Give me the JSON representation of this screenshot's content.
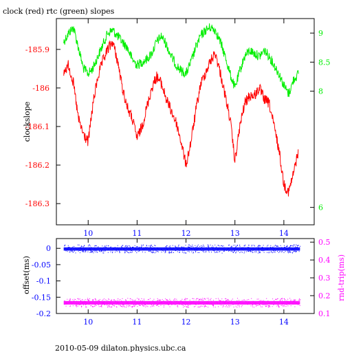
{
  "figure": {
    "title": "clock (red) rtc (green) slopes",
    "footer": "2010-05-09  dilaton.physics.ubc.ca"
  },
  "colors": {
    "clock": "#ff0000",
    "rtc": "#00ee00",
    "offset": "#0000ff",
    "rndtrip": "#ff00ff",
    "axes": "#000000"
  },
  "chart_data": [
    {
      "type": "line",
      "title": "clock (red) rtc (green) slopes",
      "xlabel": "",
      "ylabel": "clockslope",
      "xlim": [
        9.35,
        14.62
      ],
      "ylim": [
        -186.355,
        -185.82
      ],
      "y2lim": [
        5.7,
        9.25
      ],
      "x_ticks": [
        10,
        11,
        12,
        13,
        14
      ],
      "y_ticks": [
        -185.9,
        -186,
        -186.1,
        -186.2,
        -186.3
      ],
      "y_tick_labels": [
        "-185.9",
        "-186",
        "-186.1",
        "-186.2",
        "-186.3"
      ],
      "y2_ticks": [
        9,
        8.5,
        8,
        6
      ],
      "y2_tick_labels": [
        "9",
        "8.5",
        "8",
        "6"
      ],
      "series": [
        {
          "name": "clock",
          "axis": "left",
          "x": [
            9.5,
            9.6,
            9.7,
            9.8,
            9.9,
            10.0,
            10.1,
            10.2,
            10.3,
            10.4,
            10.5,
            10.6,
            10.7,
            10.8,
            10.9,
            11.0,
            11.1,
            11.2,
            11.3,
            11.4,
            11.5,
            11.6,
            11.7,
            11.8,
            11.9,
            12.0,
            12.1,
            12.2,
            12.3,
            12.4,
            12.5,
            12.6,
            12.7,
            12.8,
            12.9,
            13.0,
            13.1,
            13.2,
            13.3,
            13.4,
            13.5,
            13.6,
            13.7,
            13.8,
            13.9,
            14.0,
            14.1,
            14.2,
            14.3
          ],
          "values": [
            -185.96,
            -185.94,
            -185.99,
            -186.08,
            -186.12,
            -186.14,
            -186.04,
            -185.97,
            -185.93,
            -185.9,
            -185.88,
            -185.93,
            -186.0,
            -186.05,
            -186.08,
            -186.13,
            -186.1,
            -186.05,
            -186.0,
            -185.97,
            -185.99,
            -186.03,
            -186.06,
            -186.09,
            -186.14,
            -186.2,
            -186.14,
            -186.06,
            -185.99,
            -185.96,
            -185.93,
            -185.91,
            -185.96,
            -186.02,
            -186.08,
            -186.19,
            -186.1,
            -186.04,
            -186.02,
            -186.02,
            -186.0,
            -186.03,
            -186.04,
            -186.1,
            -186.16,
            -186.25,
            -186.27,
            -186.22,
            -186.16
          ]
        },
        {
          "name": "rtc",
          "axis": "right",
          "x": [
            9.5,
            9.6,
            9.7,
            9.8,
            9.9,
            10.0,
            10.1,
            10.2,
            10.3,
            10.4,
            10.5,
            10.6,
            10.7,
            10.8,
            10.9,
            11.0,
            11.1,
            11.2,
            11.3,
            11.4,
            11.5,
            11.6,
            11.7,
            11.8,
            11.9,
            12.0,
            12.1,
            12.2,
            12.3,
            12.4,
            12.5,
            12.6,
            12.7,
            12.8,
            12.9,
            13.0,
            13.1,
            13.2,
            13.3,
            13.4,
            13.5,
            13.6,
            13.7,
            13.8,
            13.9,
            14.0,
            14.1,
            14.2,
            14.3
          ],
          "values": [
            8.85,
            9.0,
            9.1,
            8.75,
            8.4,
            8.3,
            8.4,
            8.6,
            8.8,
            9.0,
            9.05,
            8.95,
            8.85,
            8.75,
            8.55,
            8.45,
            8.5,
            8.55,
            8.65,
            8.85,
            8.95,
            8.8,
            8.6,
            8.45,
            8.35,
            8.3,
            8.5,
            8.75,
            8.95,
            9.05,
            9.1,
            9.05,
            8.85,
            8.6,
            8.3,
            8.05,
            8.35,
            8.6,
            8.7,
            8.65,
            8.6,
            8.7,
            8.6,
            8.45,
            8.3,
            8.1,
            7.95,
            8.2,
            8.3
          ]
        }
      ]
    },
    {
      "type": "scatter",
      "xlabel": "",
      "ylabel": "offset(ms)",
      "y2label": "rnd-trip(ms)",
      "xlim": [
        9.35,
        14.62
      ],
      "ylim": [
        -0.2,
        0.03
      ],
      "y2lim": [
        0.1,
        0.52
      ],
      "x_ticks": [
        10,
        11,
        12,
        13,
        14
      ],
      "y_ticks": [
        0,
        -0.05,
        -0.1,
        -0.15,
        -0.2
      ],
      "y_tick_labels": [
        "0",
        "-0.05",
        "-0.1",
        "-0.15",
        "-0.2"
      ],
      "y2_ticks": [
        0.5,
        0.4,
        0.3,
        0.2,
        0.1
      ],
      "y2_tick_labels": [
        "0.5",
        "0.4",
        "0.3",
        "0.2",
        "0.1"
      ],
      "series": [
        {
          "name": "offset",
          "axis": "left",
          "x_range": [
            9.5,
            14.33
          ],
          "level": -0.002,
          "spread": 0.005
        },
        {
          "name": "rnd-trip",
          "axis": "right",
          "x_range": [
            9.5,
            14.33
          ],
          "level": 0.16,
          "spread": 0.01
        }
      ]
    }
  ]
}
